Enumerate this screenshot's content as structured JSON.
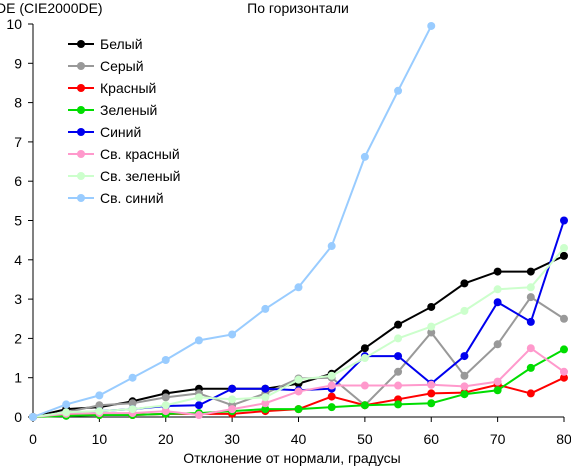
{
  "chart_data": {
    "type": "line",
    "title": "По горизонтали",
    "xlabel": "Отклонение от нормали, градусы",
    "ylabel": "DE (CIE2000DE)",
    "xlim": [
      0,
      80
    ],
    "ylim": [
      0,
      10
    ],
    "xticks": [
      0,
      10,
      20,
      30,
      40,
      50,
      60,
      70,
      80
    ],
    "yticks": [
      0,
      1,
      2,
      3,
      4,
      5,
      6,
      7,
      8,
      9,
      10
    ],
    "grid": false,
    "legend_position": "top-left",
    "x": [
      0,
      5,
      10,
      15,
      20,
      25,
      30,
      35,
      40,
      45,
      50,
      55,
      60,
      65,
      70,
      75,
      80
    ],
    "series": [
      {
        "name": "Белый",
        "color": "#000000",
        "values": [
          0,
          0.2,
          0.25,
          0.4,
          0.6,
          0.72,
          0.72,
          0.72,
          0.85,
          1.1,
          1.75,
          2.35,
          2.8,
          3.4,
          3.7,
          3.7,
          4.1
        ]
      },
      {
        "name": "Серый",
        "color": "#999999",
        "values": [
          0,
          0.12,
          0.3,
          0.35,
          0.5,
          0.6,
          0.3,
          0.6,
          0.98,
          1.0,
          0.3,
          1.15,
          2.15,
          1.05,
          1.85,
          3.05,
          2.5
        ]
      },
      {
        "name": "Красный",
        "color": "#ff0000",
        "values": [
          0,
          0.05,
          0.05,
          0.05,
          0.08,
          0.08,
          0.08,
          0.15,
          0.2,
          0.52,
          0.3,
          0.45,
          0.6,
          0.62,
          0.82,
          0.6,
          1.0
        ]
      },
      {
        "name": "Зеленый",
        "color": "#00dd00",
        "values": [
          0,
          0.03,
          0.05,
          0.05,
          0.08,
          0.1,
          0.15,
          0.2,
          0.2,
          0.25,
          0.3,
          0.32,
          0.35,
          0.58,
          0.68,
          1.25,
          1.72
        ]
      },
      {
        "name": "Синий",
        "color": "#0000ee",
        "values": [
          0,
          0.1,
          0.15,
          0.2,
          0.28,
          0.3,
          0.72,
          0.72,
          0.68,
          0.72,
          1.55,
          1.55,
          0.85,
          1.55,
          2.92,
          2.42,
          5.0
        ]
      },
      {
        "name": "Св. красный",
        "color": "#ff99cc",
        "values": [
          0,
          0.08,
          0.1,
          0.1,
          0.15,
          0.05,
          0.2,
          0.35,
          0.65,
          0.8,
          0.8,
          0.8,
          0.82,
          0.78,
          0.9,
          1.75,
          1.15
        ]
      },
      {
        "name": "Св. зеленый",
        "color": "#ccffcc",
        "values": [
          0,
          0.12,
          0.15,
          0.2,
          0.3,
          0.5,
          0.45,
          0.5,
          0.95,
          1.05,
          1.5,
          2.0,
          2.3,
          2.7,
          3.25,
          3.3,
          4.3
        ]
      },
      {
        "name": "Св. синий",
        "color": "#99ccff",
        "values": [
          0,
          0.32,
          0.55,
          1.0,
          1.45,
          1.95,
          2.1,
          2.75,
          3.3,
          4.35,
          6.62,
          8.3,
          9.95,
          null,
          null,
          null,
          null
        ]
      }
    ]
  }
}
